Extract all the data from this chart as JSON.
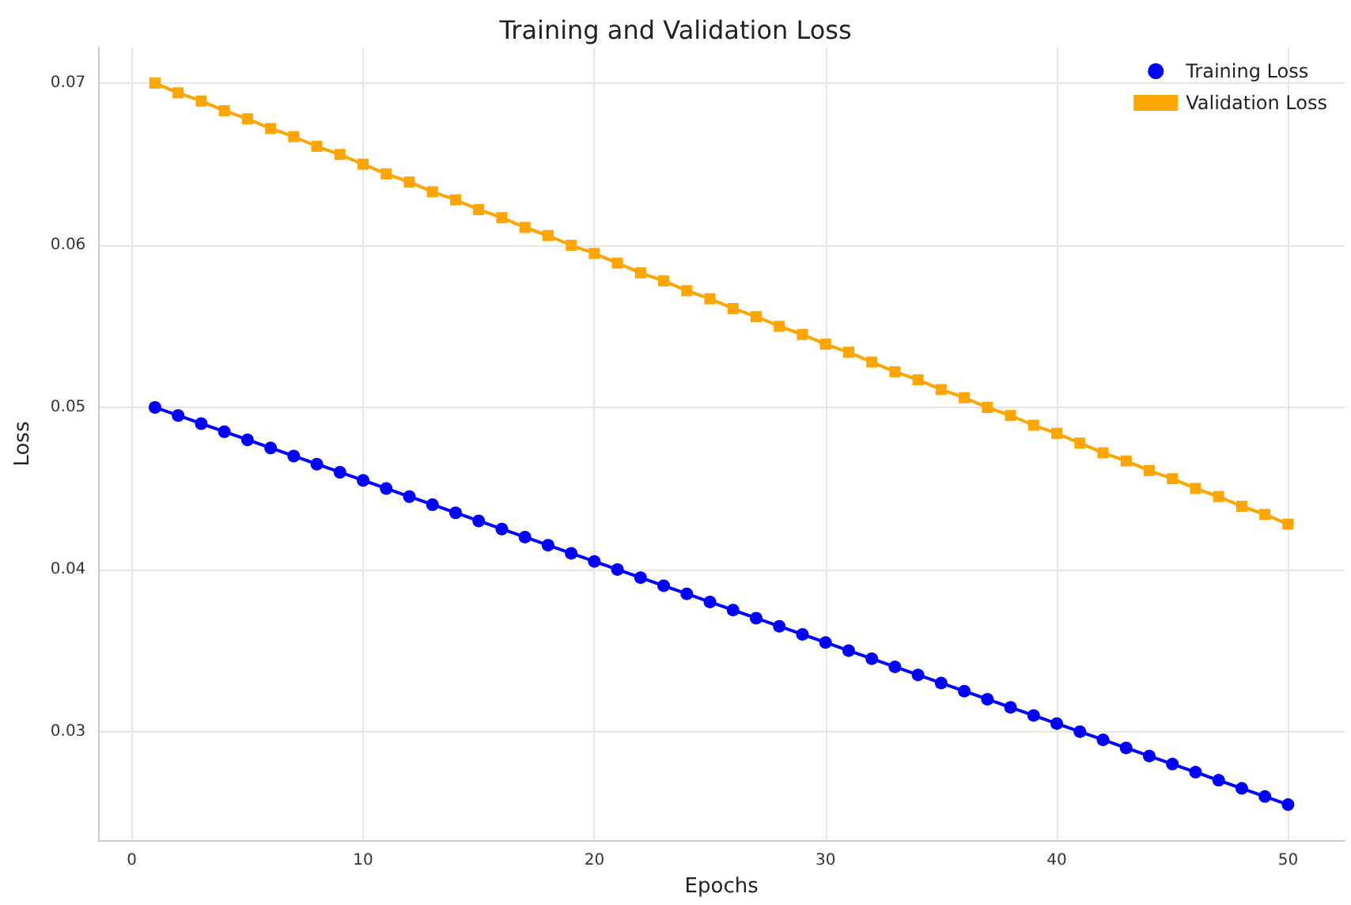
{
  "chart_data": {
    "type": "line",
    "title": "Training and Validation Loss",
    "xlabel": "Epochs",
    "ylabel": "Loss",
    "x": [
      1,
      2,
      3,
      4,
      5,
      6,
      7,
      8,
      9,
      10,
      11,
      12,
      13,
      14,
      15,
      16,
      17,
      18,
      19,
      20,
      21,
      22,
      23,
      24,
      25,
      26,
      27,
      28,
      29,
      30,
      31,
      32,
      33,
      34,
      35,
      36,
      37,
      38,
      39,
      40,
      41,
      42,
      43,
      44,
      45,
      46,
      47,
      48,
      49,
      50
    ],
    "series": [
      {
        "name": "Training Loss",
        "color": "#0000ff",
        "marker": "circle",
        "values": [
          0.05,
          0.0495,
          0.049,
          0.0485,
          0.048,
          0.0475,
          0.047,
          0.0465,
          0.046,
          0.0455,
          0.045,
          0.0445,
          0.044,
          0.0435,
          0.043,
          0.0425,
          0.042,
          0.0415,
          0.041,
          0.0405,
          0.04,
          0.0395,
          0.039,
          0.0385,
          0.038,
          0.0375,
          0.037,
          0.0365,
          0.036,
          0.0355,
          0.035,
          0.0345,
          0.034,
          0.0335,
          0.033,
          0.0325,
          0.032,
          0.0315,
          0.031,
          0.0305,
          0.03,
          0.0295,
          0.029,
          0.0285,
          0.028,
          0.0275,
          0.027,
          0.0265,
          0.026,
          0.0255
        ]
      },
      {
        "name": "Validation Loss",
        "color": "#ffa500",
        "marker": "square",
        "values": [
          0.07,
          0.0694,
          0.0689,
          0.0683,
          0.0678,
          0.0672,
          0.0667,
          0.0661,
          0.0656,
          0.065,
          0.0644,
          0.0639,
          0.0633,
          0.0628,
          0.0622,
          0.0617,
          0.0611,
          0.0606,
          0.06,
          0.0595,
          0.0589,
          0.0583,
          0.0578,
          0.0572,
          0.0567,
          0.0561,
          0.0556,
          0.055,
          0.0545,
          0.0539,
          0.0534,
          0.0528,
          0.0522,
          0.0517,
          0.0511,
          0.0506,
          0.05,
          0.0495,
          0.0489,
          0.0484,
          0.0478,
          0.0472,
          0.0467,
          0.0461,
          0.0456,
          0.045,
          0.0445,
          0.0439,
          0.0434,
          0.0428
        ]
      }
    ],
    "xlim": [
      -1.45,
      52.45
    ],
    "xticks": [
      0,
      10,
      20,
      30,
      40,
      50
    ],
    "ylim": [
      0.0233,
      0.0722
    ],
    "yticks": [
      0.03,
      0.04,
      0.05,
      0.06,
      0.07
    ],
    "grid": true,
    "legend": "top right",
    "line_style": "solid"
  }
}
